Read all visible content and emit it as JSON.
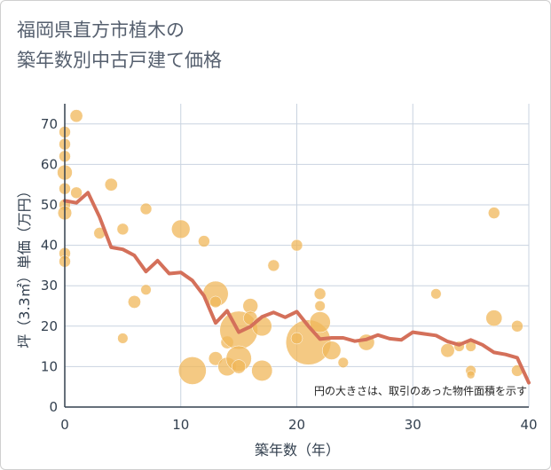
{
  "title_lines": [
    "福岡県直方市植木の",
    "築年数別中古戸建て価格"
  ],
  "chart_data": {
    "type": "scatter",
    "title": "福岡県直方市植木の築年数別中古戸建て価格",
    "xlabel": "築年数（年）",
    "ylabel": "坪（3.3㎡）単価（万円）",
    "xlim": [
      0,
      40
    ],
    "ylim": [
      0,
      75
    ],
    "xticks": [
      0,
      10,
      20,
      30,
      40
    ],
    "yticks": [
      0,
      10,
      20,
      30,
      40,
      50,
      60,
      70
    ],
    "grid": true,
    "note": "円の大きさは、取引のあった物件面積を示す",
    "colors": {
      "bubble": "#f0b75a",
      "line": "#d4705a",
      "grid": "#c9d3e0",
      "axis": "#33404f"
    },
    "series": [
      {
        "type": "bubble",
        "points": [
          {
            "x": 0,
            "y": 68,
            "s": 1
          },
          {
            "x": 0,
            "y": 65,
            "s": 1
          },
          {
            "x": 0,
            "y": 62,
            "s": 1
          },
          {
            "x": 0,
            "y": 58,
            "s": 1.3
          },
          {
            "x": 0,
            "y": 54,
            "s": 1
          },
          {
            "x": 0,
            "y": 50,
            "s": 1
          },
          {
            "x": 0,
            "y": 48,
            "s": 1.2
          },
          {
            "x": 0,
            "y": 38,
            "s": 1
          },
          {
            "x": 0,
            "y": 36,
            "s": 1
          },
          {
            "x": 1,
            "y": 72,
            "s": 1.1
          },
          {
            "x": 1,
            "y": 53,
            "s": 1
          },
          {
            "x": 3,
            "y": 43,
            "s": 1
          },
          {
            "x": 4,
            "y": 55,
            "s": 1.1
          },
          {
            "x": 5,
            "y": 44,
            "s": 1
          },
          {
            "x": 5,
            "y": 17,
            "s": 0.9
          },
          {
            "x": 6,
            "y": 26,
            "s": 1.1
          },
          {
            "x": 7,
            "y": 49,
            "s": 1
          },
          {
            "x": 7,
            "y": 29,
            "s": 0.9
          },
          {
            "x": 10,
            "y": 44,
            "s": 1.6
          },
          {
            "x": 11,
            "y": 9,
            "s": 2.4
          },
          {
            "x": 12,
            "y": 41,
            "s": 1
          },
          {
            "x": 13,
            "y": 28,
            "s": 2.2
          },
          {
            "x": 13,
            "y": 26,
            "s": 1
          },
          {
            "x": 13,
            "y": 12,
            "s": 1.2
          },
          {
            "x": 14,
            "y": 16,
            "s": 1.1
          },
          {
            "x": 14,
            "y": 10,
            "s": 1.6
          },
          {
            "x": 15,
            "y": 19,
            "s": 3.3
          },
          {
            "x": 15,
            "y": 12,
            "s": 2.2
          },
          {
            "x": 15,
            "y": 10,
            "s": 1.2
          },
          {
            "x": 16,
            "y": 25,
            "s": 1.3
          },
          {
            "x": 16,
            "y": 22,
            "s": 1.2
          },
          {
            "x": 17,
            "y": 20,
            "s": 1.7
          },
          {
            "x": 17,
            "y": 9,
            "s": 1.8
          },
          {
            "x": 18,
            "y": 35,
            "s": 1
          },
          {
            "x": 20,
            "y": 40,
            "s": 1
          },
          {
            "x": 21,
            "y": 16,
            "s": 3.9
          },
          {
            "x": 20,
            "y": 17,
            "s": 1
          },
          {
            "x": 22,
            "y": 28,
            "s": 1
          },
          {
            "x": 22,
            "y": 25,
            "s": 0.9
          },
          {
            "x": 22,
            "y": 21,
            "s": 1.8
          },
          {
            "x": 23,
            "y": 14,
            "s": 1.6
          },
          {
            "x": 24,
            "y": 11,
            "s": 0.9
          },
          {
            "x": 26,
            "y": 16,
            "s": 1.4
          },
          {
            "x": 32,
            "y": 28,
            "s": 0.9
          },
          {
            "x": 33,
            "y": 14,
            "s": 1.2
          },
          {
            "x": 34,
            "y": 15,
            "s": 0.9
          },
          {
            "x": 35,
            "y": 15,
            "s": 0.9
          },
          {
            "x": 35,
            "y": 9,
            "s": 0.9
          },
          {
            "x": 35,
            "y": 8,
            "s": 0.7
          },
          {
            "x": 37,
            "y": 48,
            "s": 1
          },
          {
            "x": 37,
            "y": 22,
            "s": 1.4
          },
          {
            "x": 39,
            "y": 20,
            "s": 1
          },
          {
            "x": 39,
            "y": 9,
            "s": 1
          }
        ]
      },
      {
        "type": "line",
        "x": [
          0,
          1,
          2,
          3,
          4,
          5,
          6,
          7,
          8,
          9,
          10,
          11,
          12,
          13,
          14,
          15,
          16,
          17,
          18,
          19,
          20,
          21,
          22,
          23,
          24,
          25,
          26,
          27,
          28,
          29,
          30,
          31,
          32,
          33,
          34,
          35,
          36,
          37,
          38,
          39,
          40
        ],
        "y": [
          51,
          50.5,
          53,
          47,
          39.5,
          39,
          37.5,
          33.5,
          36.2,
          33,
          33.3,
          31.3,
          27.5,
          20.8,
          23.8,
          18.5,
          19.9,
          22.3,
          23.4,
          22.2,
          23.6,
          20,
          16.8,
          17.1,
          17.1,
          16.3,
          16.7,
          17.8,
          16.9,
          16.6,
          18.5,
          18.1,
          17.7,
          16.2,
          15.4,
          16.6,
          15.4,
          13.5,
          13,
          12.2,
          6
        ]
      }
    ]
  }
}
